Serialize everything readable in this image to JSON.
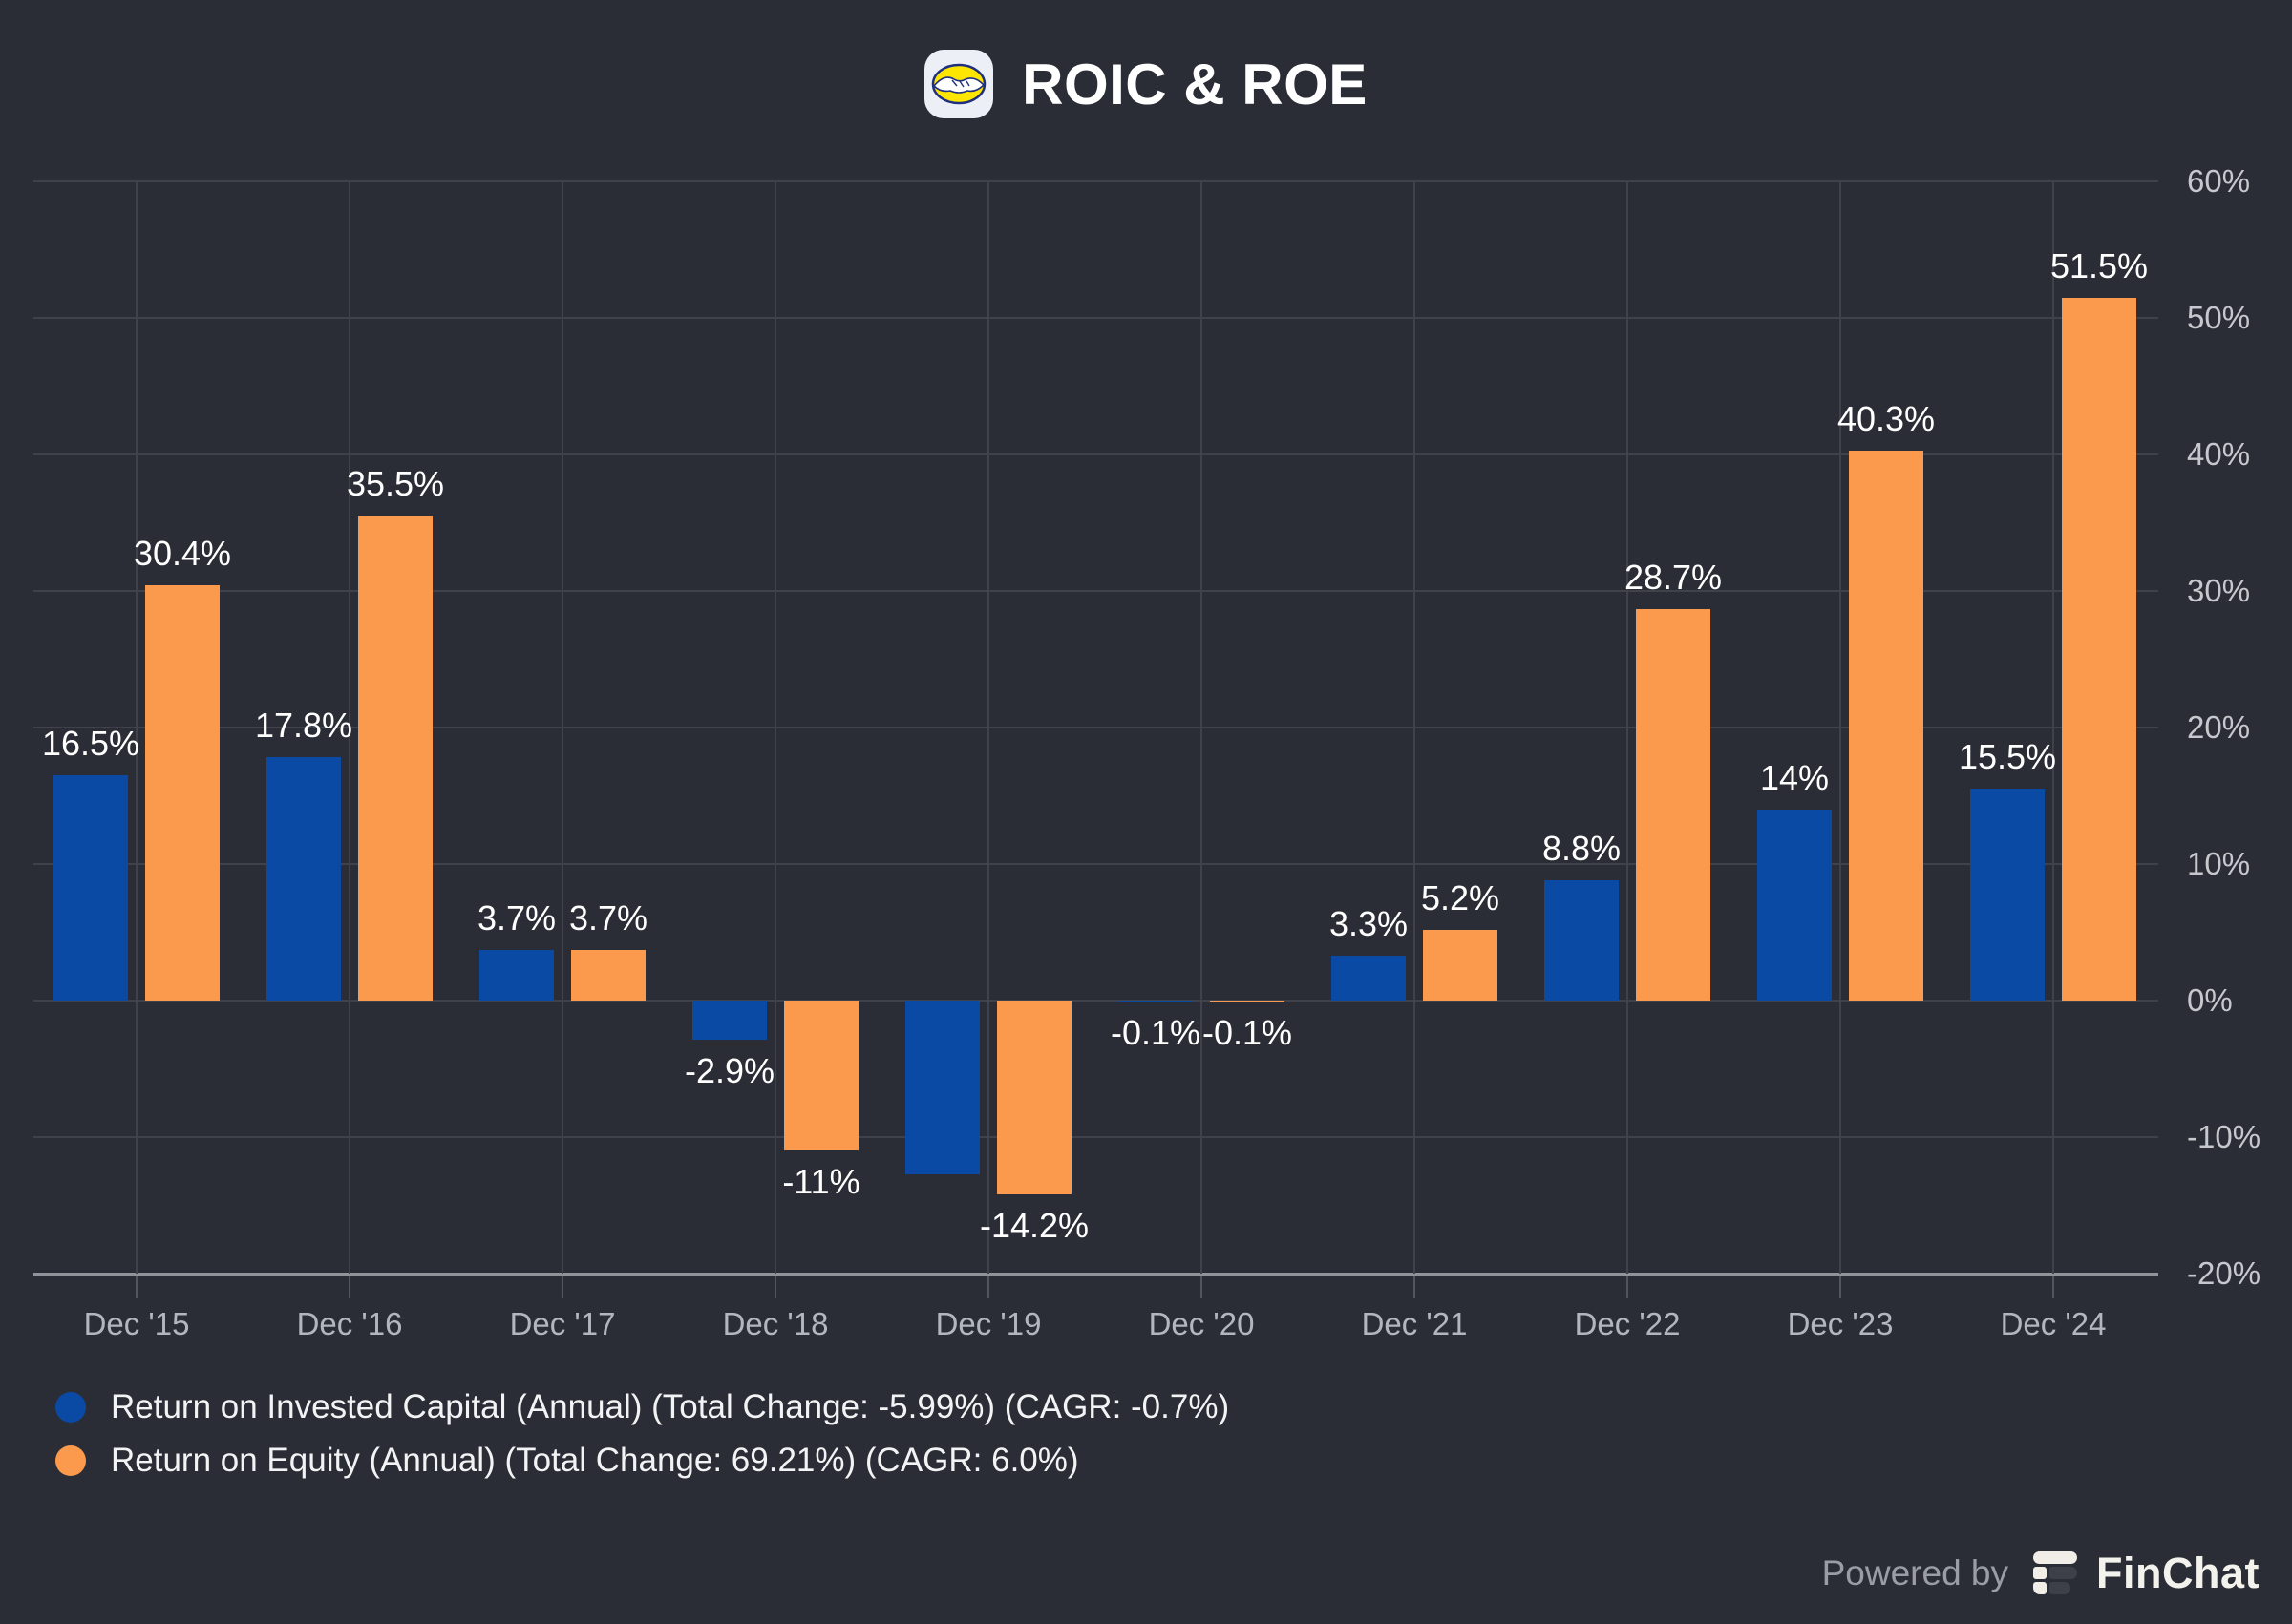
{
  "header": {
    "title": "ROIC & ROE",
    "icon": "mercadolibre-handshake-icon"
  },
  "chart_data": {
    "type": "bar",
    "title": "ROIC & ROE",
    "categories": [
      "Dec '15",
      "Dec '16",
      "Dec '17",
      "Dec '18",
      "Dec '19",
      "Dec '20",
      "Dec '21",
      "Dec '22",
      "Dec '23",
      "Dec '24"
    ],
    "series": [
      {
        "name": "Return on Invested Capital (Annual) (Total Change: -5.99%) (CAGR: -0.7%)",
        "color": "#0a49a4",
        "values": [
          16.5,
          17.8,
          3.7,
          -2.9,
          -12.7,
          -0.1,
          3.3,
          8.8,
          14,
          15.5
        ],
        "labels": [
          "16.5%",
          "17.8%",
          "3.7%",
          "-2.9%",
          null,
          "-0.1%",
          "3.3%",
          "8.8%",
          "14%",
          "15.5%"
        ]
      },
      {
        "name": "Return on Equity (Annual) (Total Change: 69.21%) (CAGR: 6.0%)",
        "color": "#fb9a4d",
        "values": [
          30.4,
          35.5,
          3.7,
          -11,
          -14.2,
          -0.1,
          5.2,
          28.7,
          40.3,
          51.5
        ],
        "labels": [
          "30.4%",
          "35.5%",
          "3.7%",
          "-11%",
          "-14.2%",
          "-0.1%",
          "5.2%",
          "28.7%",
          "40.3%",
          "51.5%"
        ]
      }
    ],
    "ylim": [
      -20,
      60
    ],
    "yticks": [
      {
        "value": 60,
        "label": "60%"
      },
      {
        "value": 50,
        "label": "50%"
      },
      {
        "value": 40,
        "label": "40%"
      },
      {
        "value": 30,
        "label": "30%"
      },
      {
        "value": 20,
        "label": "20%"
      },
      {
        "value": 10,
        "label": "10%"
      },
      {
        "value": 0,
        "label": "0%"
      },
      {
        "value": -10,
        "label": "-10%"
      },
      {
        "value": -20,
        "label": "-20%"
      }
    ],
    "grid": true,
    "legend_position": "bottom-left"
  },
  "footer": {
    "powered_by": "Powered by",
    "brand": "FinChat"
  },
  "colors": {
    "background": "#2b2d36",
    "grid": "#3f424b",
    "axis": "#91939a",
    "tick_label": "#b4b6bd",
    "data_label": "#ffffff",
    "roic_blue": "#0a49a4",
    "roe_orange": "#fb9a4d"
  }
}
